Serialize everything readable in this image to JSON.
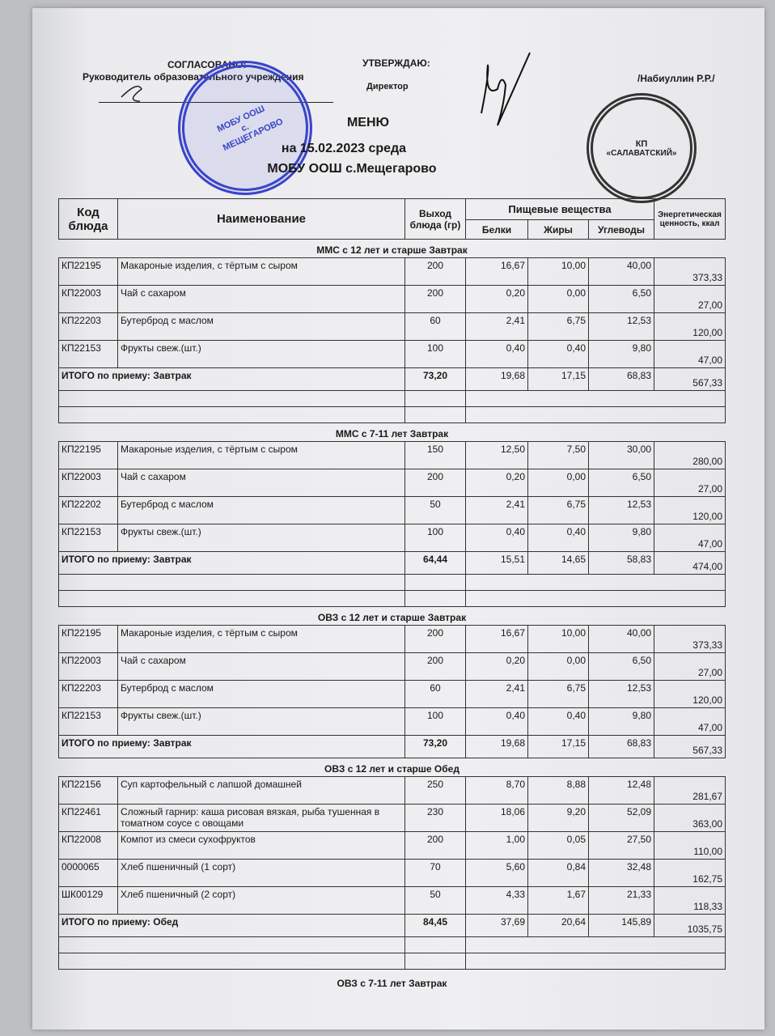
{
  "header": {
    "agreed_label": "СОГЛАСОВАНО:",
    "agreed_role": "Руководитель образовательного учреждения",
    "approve_label": "УТВЕРЖДАЮ:",
    "approve_role": "Директор",
    "approver_name": "/Набиуллин Р.Р./",
    "title": "МЕНЮ",
    "date_line": "на 15.02.2023  среда",
    "school": "МОБУ ООШ с.Мещегарово"
  },
  "stamps": {
    "left": "МОБУ ООШ с. МЕЩЕГАРОВО",
    "right_top": "КП",
    "right_name": "«САЛАВАТСКИЙ»"
  },
  "table_header": {
    "code": "Код блюда",
    "name": "Наименование",
    "yield": "Выход блюда (гр)",
    "nutrients": "Пищевые вещества",
    "protein": "Белки",
    "fat": "Жиры",
    "carbs": "Углеводы",
    "energy": "Энергетическая ценность, ккал"
  },
  "sections": [
    {
      "title": "ММС с 12 лет и старше Завтрак",
      "rows": [
        [
          "КП22195",
          "Макароные изделия, с тёртым  с сыром",
          "200",
          "16,67",
          "10,00",
          "40,00",
          "373,33"
        ],
        [
          "КП22003",
          "Чай с сахаром",
          "200",
          "0,20",
          "0,00",
          "6,50",
          "27,00"
        ],
        [
          "КП22203",
          "Бутерброд с маслом",
          "60",
          "2,41",
          "6,75",
          "12,53",
          "120,00"
        ],
        [
          "КП22153",
          "Фрукты свеж.(шт.)",
          "100",
          "0,40",
          "0,40",
          "9,80",
          "47,00"
        ]
      ],
      "total": [
        "ИТОГО по приему: Завтрак",
        "73,20",
        "19,68",
        "17,15",
        "68,83",
        "567,33"
      ]
    },
    {
      "title": "ММС с 7-11 лет Завтрак",
      "rows": [
        [
          "КП22195",
          "Макароные изделия, с тёртым  с сыром",
          "150",
          "12,50",
          "7,50",
          "30,00",
          "280,00"
        ],
        [
          "КП22003",
          "Чай с сахаром",
          "200",
          "0,20",
          "0,00",
          "6,50",
          "27,00"
        ],
        [
          "КП22202",
          "Бутерброд с маслом",
          "50",
          "2,41",
          "6,75",
          "12,53",
          "120,00"
        ],
        [
          "КП22153",
          "Фрукты свеж.(шт.)",
          "100",
          "0,40",
          "0,40",
          "9,80",
          "47,00"
        ]
      ],
      "total": [
        "ИТОГО по приему: Завтрак",
        "64,44",
        "15,51",
        "14,65",
        "58,83",
        "474,00"
      ]
    },
    {
      "title": "ОВЗ с 12 лет и старше Завтрак",
      "rows": [
        [
          "КП22195",
          "Макароные изделия, с тёртым  с сыром",
          "200",
          "16,67",
          "10,00",
          "40,00",
          "373,33"
        ],
        [
          "КП22003",
          "Чай с сахаром",
          "200",
          "0,20",
          "0,00",
          "6,50",
          "27,00"
        ],
        [
          "КП22203",
          "Бутерброд с маслом",
          "60",
          "2,41",
          "6,75",
          "12,53",
          "120,00"
        ],
        [
          "КП22153",
          "Фрукты свеж.(шт.)",
          "100",
          "0,40",
          "0,40",
          "9,80",
          "47,00"
        ]
      ],
      "total": [
        "ИТОГО по приему: Завтрак",
        "73,20",
        "19,68",
        "17,15",
        "68,83",
        "567,33"
      ]
    },
    {
      "title": "ОВЗ с 12 лет и старше Обед",
      "rows": [
        [
          "КП22156",
          "Суп картофельный с лапшой домашней",
          "250",
          "8,70",
          "8,88",
          "12,48",
          "281,67"
        ],
        [
          "КП22461",
          "Сложный гарнир: каша рисовая вязкая, рыба тушенная в томатном соусе с овощами",
          "230",
          "18,06",
          "9,20",
          "52,09",
          "363,00"
        ],
        [
          "КП22008",
          "Компот из смеси сухофруктов",
          "200",
          "1,00",
          "0,05",
          "27,50",
          "110,00"
        ],
        [
          "0000065",
          "Хлеб пшеничный (1 сорт)",
          "70",
          "5,60",
          "0,84",
          "32,48",
          "162,75"
        ],
        [
          "ШК00129",
          "Хлеб пшеничный (2 сорт)",
          "50",
          "4,33",
          "1,67",
          "21,33",
          "118,33"
        ]
      ],
      "total": [
        "ИТОГО по приему: Обед",
        "84,45",
        "37,69",
        "20,64",
        "145,89",
        "1035,75"
      ]
    }
  ],
  "footer_section_title": "ОВЗ с 7-11 лет Завтрак"
}
